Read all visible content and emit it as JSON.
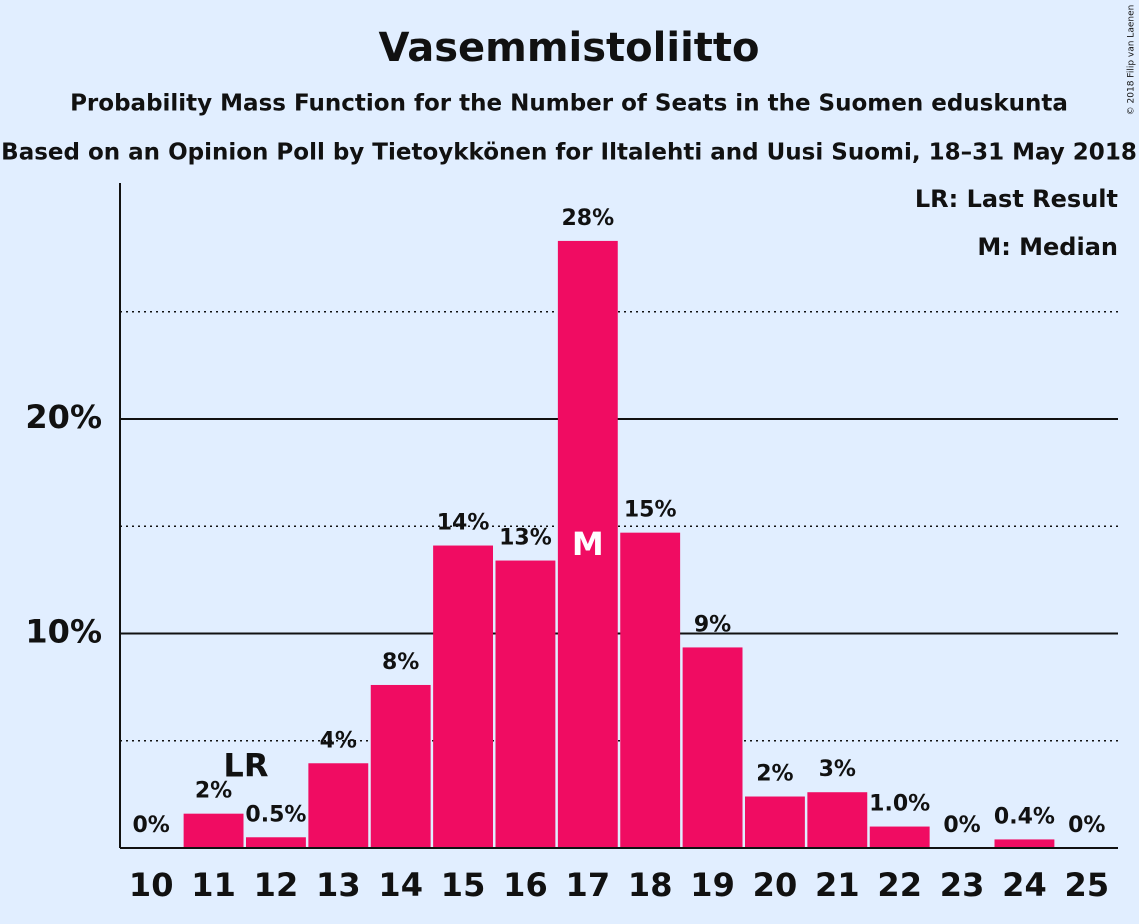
{
  "chart_data": {
    "type": "bar",
    "title": "Vasemmistoliitto",
    "subtitle": "Probability Mass Function for the Number of Seats in the Suomen eduskunta",
    "subtitle2": "Based on an Opinion Poll by Tietoykkönen for Iltalehti and Uusi Suomi, 18–31 May 2018",
    "copyright": "© 2018 Filip van Laenen",
    "legend": [
      "LR: Last Result",
      "M: Median"
    ],
    "last_result": 12,
    "last_result_label": "LR",
    "median": 17,
    "median_label": "M",
    "categories": [
      "10",
      "11",
      "12",
      "13",
      "14",
      "15",
      "16",
      "17",
      "18",
      "19",
      "20",
      "21",
      "22",
      "23",
      "24",
      "25"
    ],
    "values": [
      0,
      1.6,
      0.5,
      3.95,
      7.6,
      14.1,
      13.4,
      28.3,
      14.7,
      9.35,
      2.4,
      2.6,
      1.0,
      0,
      0.4,
      0
    ],
    "value_labels": [
      "0%",
      "2%",
      "0.5%",
      "4%",
      "8%",
      "14%",
      "13%",
      "28%",
      "15%",
      "9%",
      "2%",
      "3%",
      "1.0%",
      "0%",
      "0.4%",
      "0%"
    ],
    "color": "#f00c62",
    "ylim": [
      0,
      31
    ],
    "yticks": [
      {
        "value": 10,
        "label": "10%"
      },
      {
        "value": 20,
        "label": "20%"
      }
    ],
    "minor_gridlines": [
      5,
      15,
      25
    ],
    "grid": true
  }
}
